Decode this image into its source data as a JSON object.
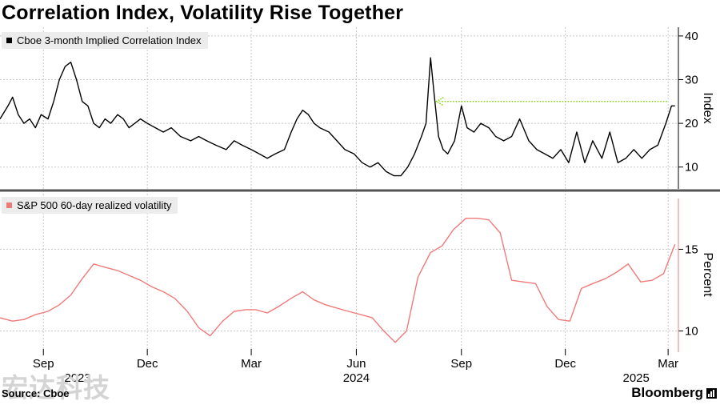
{
  "title": "Correlation Index, Volatility Rise Together",
  "source": "Source: Cboe",
  "brand": "Bloomberg",
  "watermark": "宏达科技",
  "colors": {
    "series_top": "#000000",
    "series_bottom": "#f07a7a",
    "annotation_arrow": "#7fd400",
    "grid": "#c8c8c8",
    "divider": "#555555",
    "legend_bg": "#ececec"
  },
  "x_axis": {
    "range": [
      "2023-07-25",
      "2025-03-10"
    ],
    "ticks": [
      {
        "label": "Sep",
        "date": "2023-09-01"
      },
      {
        "label": "Dec",
        "date": "2023-12-01"
      },
      {
        "label": "Mar",
        "date": "2024-03-01"
      },
      {
        "label": "Jun",
        "date": "2024-06-01"
      },
      {
        "label": "Sep",
        "date": "2024-09-01"
      },
      {
        "label": "Dec",
        "date": "2024-12-01"
      },
      {
        "label": "Mar",
        "date": "2025-03-01"
      }
    ],
    "year_labels": [
      {
        "label": "2023",
        "date": "2023-10-01"
      },
      {
        "label": "2024",
        "date": "2024-06-01"
      },
      {
        "label": "2025",
        "date": "2025-02-01"
      }
    ]
  },
  "chart_data": [
    {
      "type": "line",
      "series": [
        {
          "name": "Cboe 3-month Implied Correlation Index",
          "x": [
            "2023-07-25",
            "2023-08-01",
            "2023-08-05",
            "2023-08-10",
            "2023-08-15",
            "2023-08-20",
            "2023-08-25",
            "2023-08-30",
            "2023-09-05",
            "2023-09-10",
            "2023-09-15",
            "2023-09-20",
            "2023-09-25",
            "2023-09-30",
            "2023-10-05",
            "2023-10-10",
            "2023-10-15",
            "2023-10-20",
            "2023-10-25",
            "2023-10-30",
            "2023-11-05",
            "2023-11-10",
            "2023-11-15",
            "2023-11-20",
            "2023-11-25",
            "2023-12-01",
            "2023-12-08",
            "2023-12-15",
            "2023-12-22",
            "2023-12-30",
            "2024-01-08",
            "2024-01-15",
            "2024-01-22",
            "2024-01-30",
            "2024-02-08",
            "2024-02-15",
            "2024-02-22",
            "2024-03-01",
            "2024-03-08",
            "2024-03-15",
            "2024-03-22",
            "2024-03-30",
            "2024-04-05",
            "2024-04-10",
            "2024-04-15",
            "2024-04-20",
            "2024-04-25",
            "2024-04-30",
            "2024-05-08",
            "2024-05-15",
            "2024-05-22",
            "2024-05-30",
            "2024-06-06",
            "2024-06-13",
            "2024-06-20",
            "2024-06-27",
            "2024-07-04",
            "2024-07-10",
            "2024-07-16",
            "2024-07-22",
            "2024-07-28",
            "2024-08-01",
            "2024-08-05",
            "2024-08-08",
            "2024-08-12",
            "2024-08-16",
            "2024-08-20",
            "2024-08-26",
            "2024-09-01",
            "2024-09-06",
            "2024-09-12",
            "2024-09-18",
            "2024-09-25",
            "2024-10-01",
            "2024-10-08",
            "2024-10-15",
            "2024-10-22",
            "2024-10-30",
            "2024-11-06",
            "2024-11-13",
            "2024-11-20",
            "2024-11-27",
            "2024-12-04",
            "2024-12-11",
            "2024-12-18",
            "2024-12-25",
            "2025-01-02",
            "2025-01-09",
            "2025-01-16",
            "2025-01-23",
            "2025-01-30",
            "2025-02-06",
            "2025-02-13",
            "2025-02-20",
            "2025-02-27",
            "2025-03-04",
            "2025-03-07"
          ],
          "values": [
            21,
            24,
            26,
            22,
            20,
            21,
            19,
            22,
            21,
            25,
            30,
            33,
            34,
            30,
            25,
            24,
            20,
            19,
            21,
            20,
            22,
            21,
            19,
            20,
            21,
            20,
            19,
            18,
            19,
            17,
            16,
            17,
            16,
            15,
            14,
            16,
            15,
            14,
            13,
            12,
            13,
            14,
            18,
            21,
            23,
            22,
            20,
            19,
            18,
            16,
            14,
            13,
            11,
            10,
            11,
            9,
            8,
            8,
            10,
            13,
            17,
            20,
            35,
            27,
            17,
            14,
            13,
            16,
            24,
            19,
            18,
            20,
            19,
            17,
            16,
            17,
            21,
            16,
            14,
            13,
            12,
            14,
            11,
            18,
            11,
            16,
            12,
            18,
            11,
            12,
            14,
            12,
            14,
            15,
            20,
            24,
            24
          ]
        }
      ],
      "ylabel": "Index",
      "ylim": [
        5,
        42
      ],
      "yticks": [
        10,
        20,
        30,
        40
      ],
      "grid": true,
      "legend": "top-left",
      "annotation": {
        "type": "dotted-arrow",
        "y": 25,
        "from_date": "2025-02-28",
        "to_date": "2024-08-10"
      }
    },
    {
      "type": "line",
      "series": [
        {
          "name": "S&P 500 60-day realized volatility",
          "x": [
            "2023-07-25",
            "2023-08-05",
            "2023-08-15",
            "2023-08-25",
            "2023-09-05",
            "2023-09-15",
            "2023-09-25",
            "2023-10-05",
            "2023-10-15",
            "2023-10-25",
            "2023-11-05",
            "2023-11-15",
            "2023-11-25",
            "2023-12-05",
            "2023-12-15",
            "2023-12-25",
            "2024-01-05",
            "2024-01-15",
            "2024-01-25",
            "2024-02-05",
            "2024-02-15",
            "2024-02-25",
            "2024-03-05",
            "2024-03-15",
            "2024-03-25",
            "2024-04-05",
            "2024-04-15",
            "2024-04-25",
            "2024-05-05",
            "2024-05-15",
            "2024-05-25",
            "2024-06-05",
            "2024-06-15",
            "2024-06-25",
            "2024-07-05",
            "2024-07-15",
            "2024-07-25",
            "2024-08-05",
            "2024-08-15",
            "2024-08-25",
            "2024-09-05",
            "2024-09-15",
            "2024-09-25",
            "2024-10-05",
            "2024-10-15",
            "2024-10-25",
            "2024-11-05",
            "2024-11-15",
            "2024-11-25",
            "2024-12-05",
            "2024-12-15",
            "2024-12-25",
            "2025-01-05",
            "2025-01-15",
            "2025-01-25",
            "2025-02-05",
            "2025-02-15",
            "2025-02-25",
            "2025-03-07"
          ],
          "values": [
            10.8,
            10.6,
            10.7,
            11.0,
            11.2,
            11.6,
            12.2,
            13.2,
            14.1,
            13.9,
            13.7,
            13.4,
            13.1,
            12.7,
            12.4,
            12.0,
            11.2,
            10.2,
            9.7,
            10.6,
            11.2,
            11.3,
            11.3,
            11.1,
            11.5,
            12.0,
            12.4,
            11.9,
            11.6,
            11.4,
            11.2,
            11.0,
            10.8,
            10.0,
            9.3,
            10.0,
            13.3,
            14.8,
            15.2,
            16.2,
            16.9,
            16.9,
            16.8,
            16.0,
            13.1,
            13.0,
            12.9,
            11.5,
            10.7,
            10.6,
            12.6,
            12.9,
            13.2,
            13.6,
            14.1,
            13.0,
            13.1,
            13.5,
            15.3
          ]
        }
      ],
      "ylabel": "Percent",
      "ylim": [
        8.7,
        18.5
      ],
      "yticks": [
        10,
        15
      ],
      "grid": true,
      "legend": "top-left"
    }
  ]
}
